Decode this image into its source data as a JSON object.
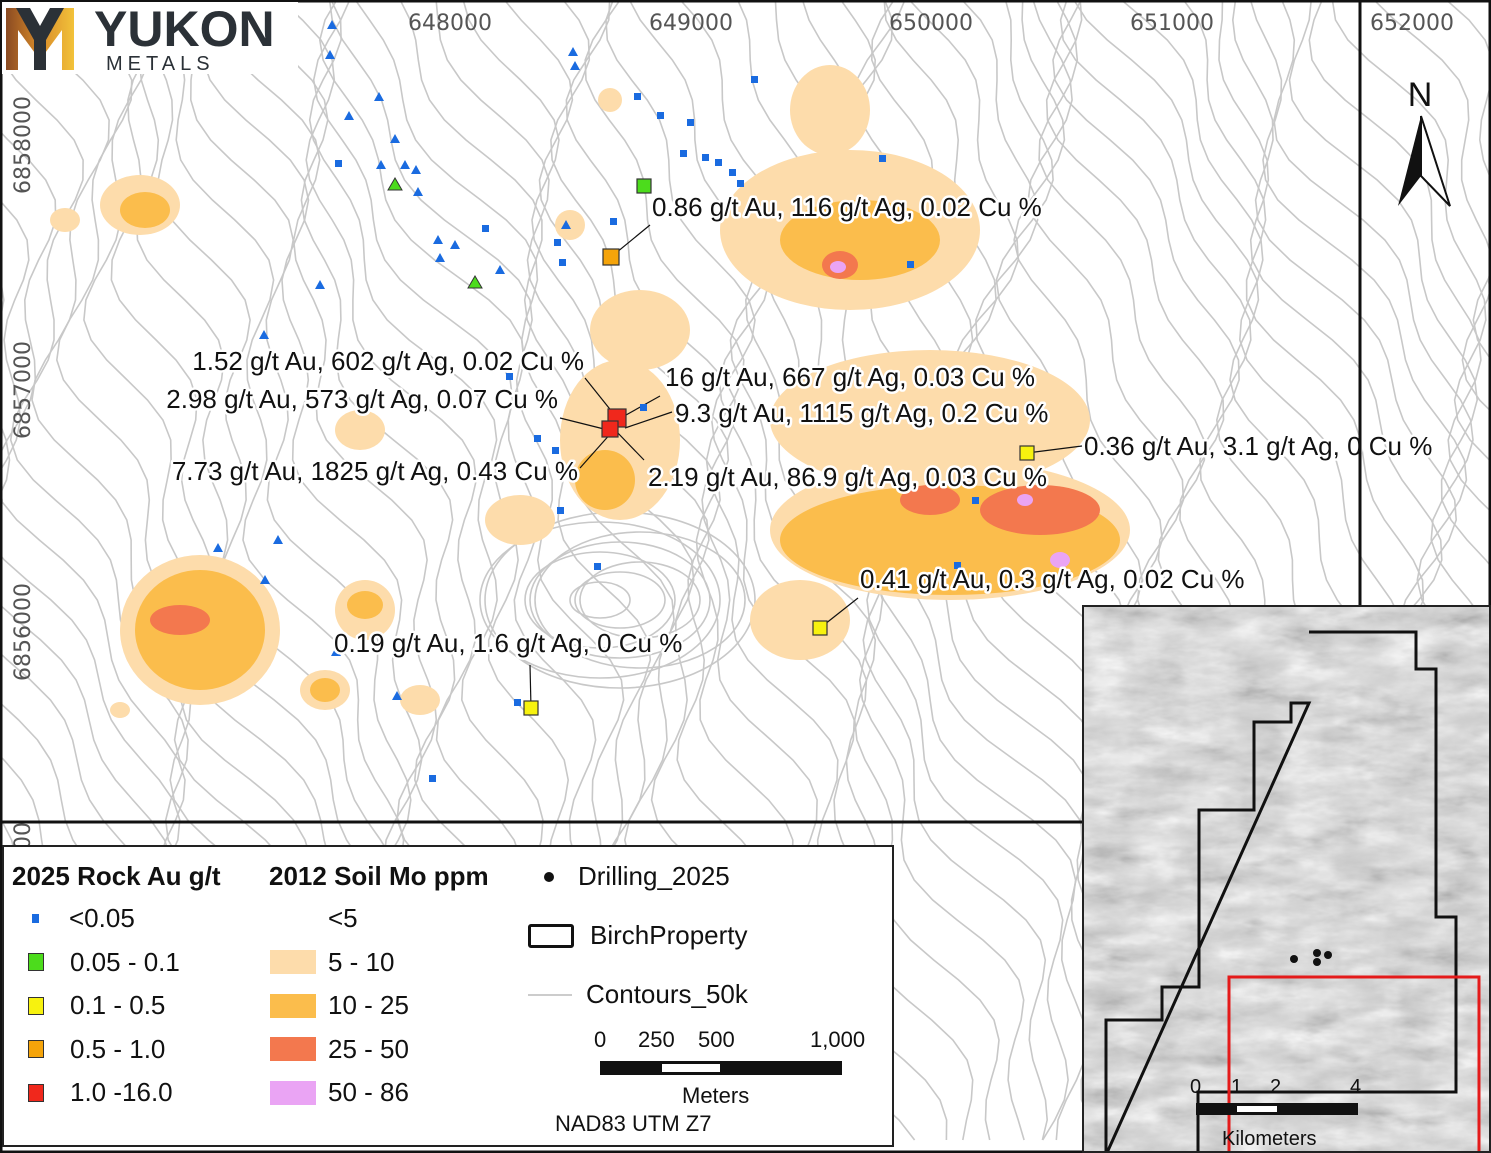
{
  "logo": {
    "name": "YUKON",
    "sub": "METALS",
    "colors": {
      "dark": "#2b3137",
      "gold": "#e2a526",
      "copper": "#8a4a22"
    }
  },
  "grid": {
    "eastings": [
      "648000",
      "649000",
      "650000",
      "651000",
      "652000"
    ],
    "northings": [
      "6858000",
      "6857000",
      "6856000"
    ],
    "partial": "00"
  },
  "north_arrow": {
    "label": "N"
  },
  "samples_labels": [
    "0.86 g/t Au, 116 g/t Ag, 0.02 Cu %",
    "1.52 g/t Au, 602 g/t Ag, 0.02 Cu %",
    "16 g/t Au, 667 g/t Ag, 0.03 Cu %",
    "2.98 g/t Au, 573 g/t Ag, 0.07 Cu %",
    "9.3 g/t Au, 1115 g/t Ag, 0.2 Cu %",
    "0.36 g/t Au, 3.1 g/t Ag, 0 Cu %",
    "7.73 g/t Au, 1825 g/t Ag, 0.43 Cu %",
    "2.19 g/t Au, 86.9 g/t Ag, 0.03 Cu %",
    "0.41 g/t Au, 0.3 g/t Ag, 0.02 Cu %",
    "0.19 g/t Au, 1.6 g/t Ag, 0 Cu %"
  ],
  "legend": {
    "rock": {
      "title": "2025 Rock Au g/t",
      "items": [
        {
          "label": "<0.05",
          "color": "#1a6be0"
        },
        {
          "label": "0.05 - 0.1",
          "color": "#4cdc1c"
        },
        {
          "label": "0.1 - 0.5",
          "color": "#f7f20f"
        },
        {
          "label": "0.5 - 1.0",
          "color": "#f5a40a"
        },
        {
          "label": "1.0 -16.0",
          "color": "#f0281c"
        }
      ]
    },
    "soil": {
      "title": "2012 Soil Mo ppm",
      "items": [
        {
          "label": "<5",
          "color": ""
        },
        {
          "label": "5 - 10",
          "color": "#fddcab"
        },
        {
          "label": "10 - 25",
          "color": "#fbbd4c"
        },
        {
          "label": "25 - 50",
          "color": "#f3784e"
        },
        {
          "label": "50 - 86",
          "color": "#eaa4f4"
        }
      ]
    },
    "drilling": "Drilling_2025",
    "property": "BirchProperty",
    "contours": "Contours_50k",
    "scale": {
      "ticks": [
        "0",
        "250",
        "500",
        "1,000"
      ],
      "unit": "Meters"
    },
    "projection": "NAD83 UTM Z7"
  },
  "inset": {
    "scale": {
      "ticks": [
        "0",
        "1",
        "2",
        "4"
      ],
      "unit": "Kilometers"
    },
    "extent_color": "#e41a1a"
  }
}
